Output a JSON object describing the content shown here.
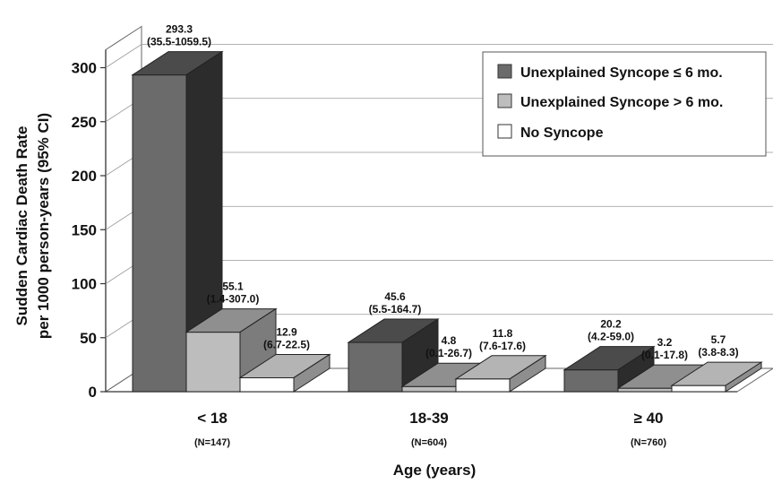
{
  "chart_data": {
    "type": "bar",
    "ylabel_line1": "Sudden Cardiac Death Rate",
    "ylabel_line2": "per 1000 person-years (95% CI)",
    "xlabel": "Age (years)",
    "ylim": [
      0,
      300
    ],
    "yticks": [
      "0",
      "50",
      "100",
      "150",
      "200",
      "250",
      "300"
    ],
    "categories": [
      "< 18",
      "18-39",
      "≥ 40"
    ],
    "category_n": [
      "(N=147)",
      "(N=604)",
      "(N=760)"
    ],
    "series": [
      {
        "name": "Unexplained Syncope ≤ 6 mo.",
        "color": "#6b6b6b",
        "values": [
          293.3,
          45.6,
          20.2
        ],
        "value_labels": [
          "293.3",
          "45.6",
          "20.2"
        ],
        "ci_labels": [
          "(35.5-1059.5)",
          "(5.5-164.7)",
          "(4.2-59.0)"
        ]
      },
      {
        "name": "Unexplained Syncope > 6 mo.",
        "color": "#bdbdbd",
        "values": [
          55.1,
          4.8,
          3.2
        ],
        "value_labels": [
          "55.1",
          "4.8",
          "3.2"
        ],
        "ci_labels": [
          "(1.4-307.0)",
          "(0.1-26.7)",
          "(0.1-17.8)"
        ]
      },
      {
        "name": "No Syncope",
        "color": "#ffffff",
        "values": [
          12.9,
          11.8,
          5.7
        ],
        "value_labels": [
          "12.9",
          "11.8",
          "5.7"
        ],
        "ci_labels": [
          "(6.7-22.5)",
          "(7.6-17.6)",
          "(3.8-8.3)"
        ]
      }
    ],
    "grid": true,
    "legend_position": "top-right",
    "style": "3d"
  }
}
